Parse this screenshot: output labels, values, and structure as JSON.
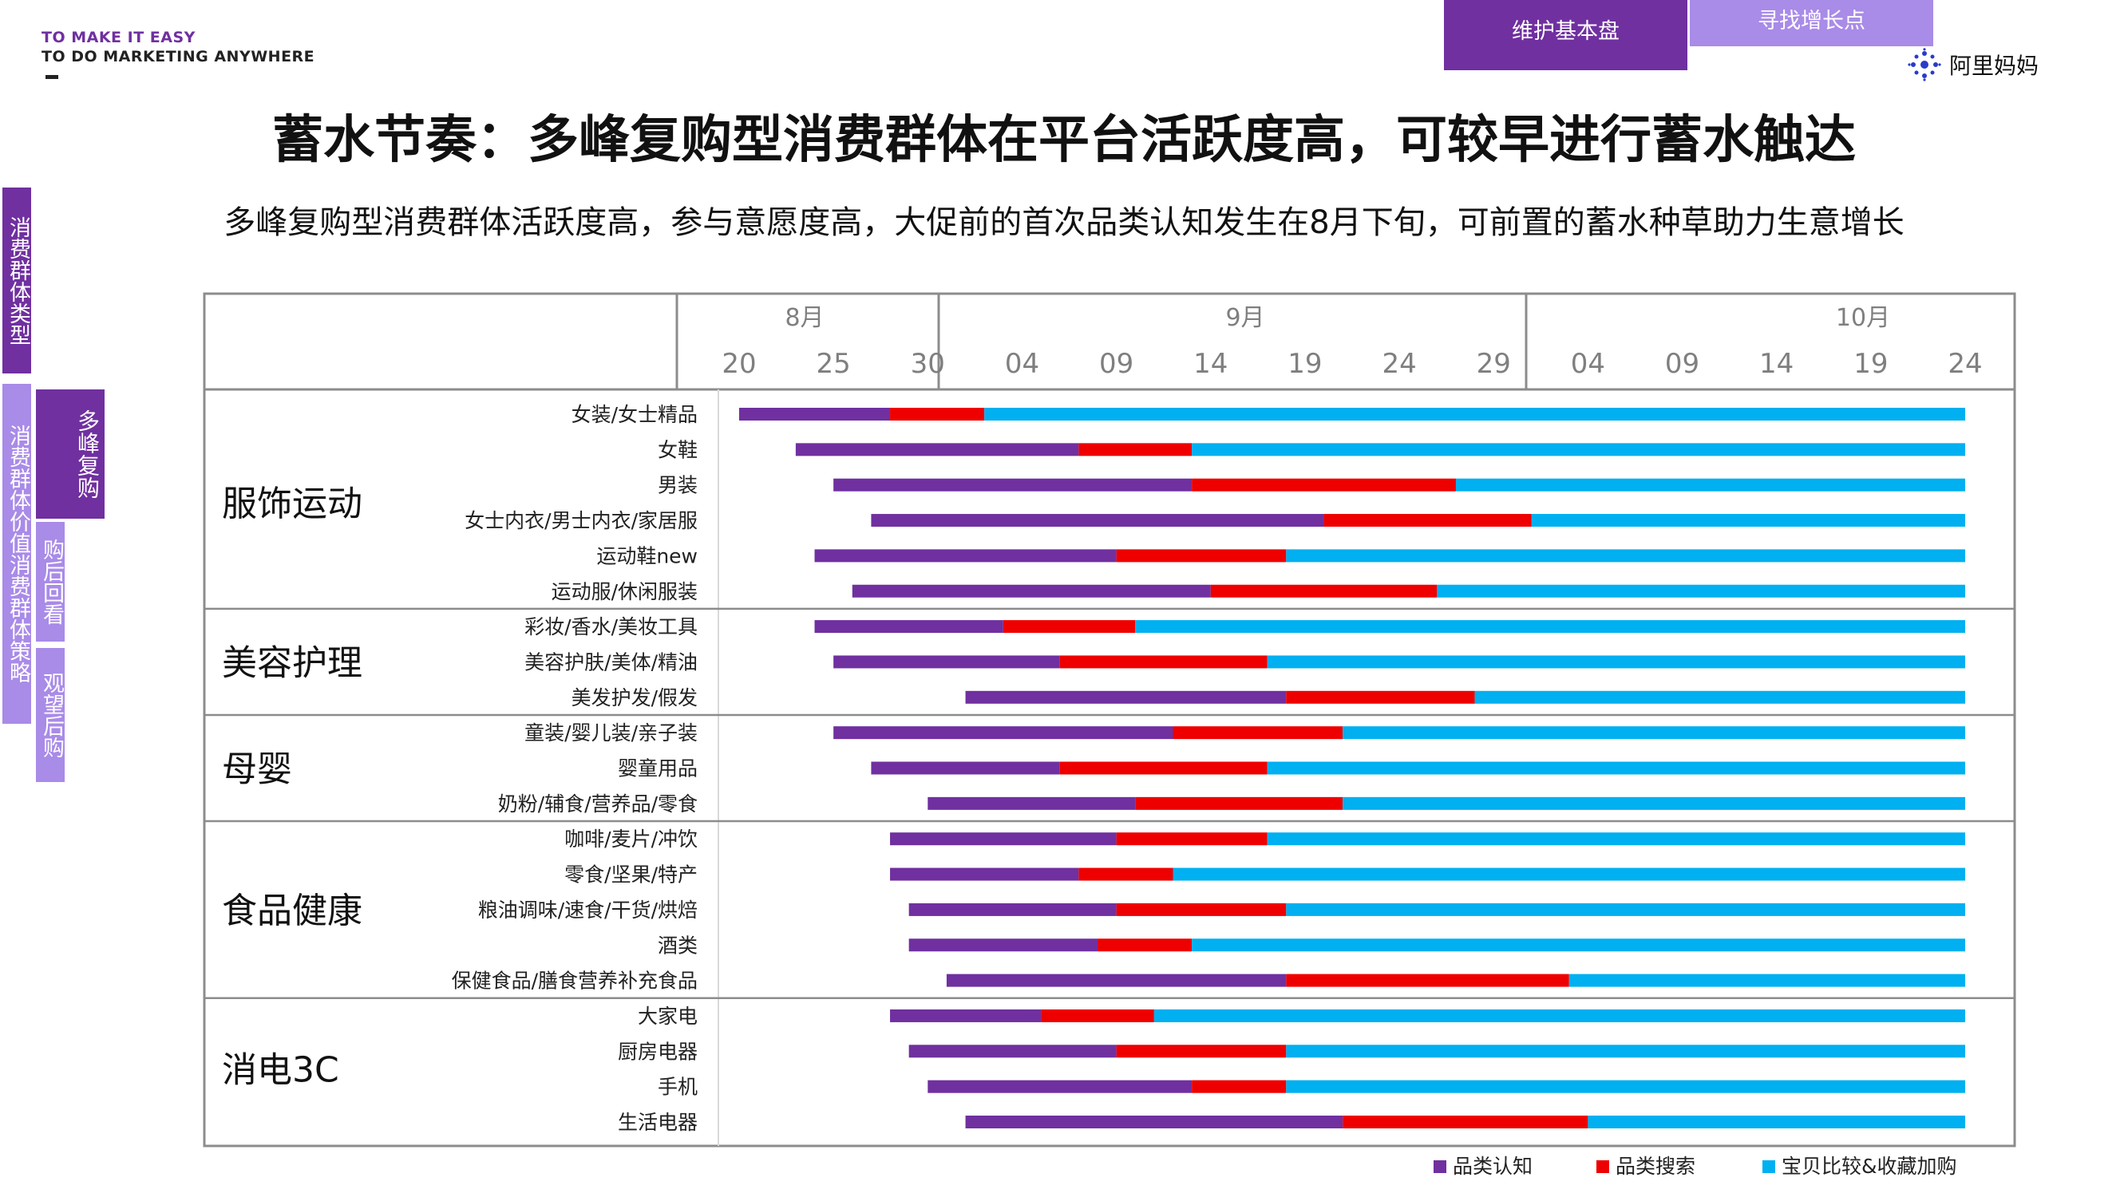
{
  "brand": {
    "line1": "TO MAKE IT EASY",
    "line2": "TO DO MARKETING ANYWHERE"
  },
  "tabs": [
    {
      "label": "维护基本盘",
      "active": true
    },
    {
      "label": "寻找增长点",
      "active": false
    }
  ],
  "logo": {
    "icon": "alimama-logo-icon",
    "text": "阿里妈妈"
  },
  "title": "蓄水节奏：多峰复购型消费群体在平台活跃度高，可较早进行蓄水触达",
  "subtitle": "多峰复购型消费群体活跃度高，参与意愿度高，大促前的首次品类认知发生在8月下旬，可前置的蓄水种草助力生意增长",
  "side_nav": {
    "consumer_type": "消费群体类型",
    "consumer_value": "消费群体价值",
    "consumer_strategy": "消费群体策略",
    "multi_peak": "多峰复购",
    "post_purchase": "购后回看",
    "wait_and_see": "观望后购"
  },
  "colors": {
    "purple": "#7030A0",
    "red": "#EE0000",
    "blue": "#00B0F0",
    "light_purple": "#A98BE8"
  },
  "chart_data": {
    "type": "bar",
    "orientation": "horizontal-stacked-timeline",
    "months": [
      {
        "label": "8月"
      },
      {
        "label": "9月"
      },
      {
        "label": "10月"
      }
    ],
    "tick_labels": [
      "20",
      "25",
      "30",
      "04",
      "09",
      "14",
      "19",
      "24",
      "29",
      "04",
      "09",
      "14",
      "19",
      "24"
    ],
    "tick_dates": [
      "08-20",
      "08-25",
      "08-30",
      "09-04",
      "09-09",
      "09-14",
      "09-19",
      "09-24",
      "09-29",
      "10-04",
      "10-09",
      "10-14",
      "10-19",
      "10-24"
    ],
    "legend": [
      {
        "name": "品类认知",
        "color": "#7030A0"
      },
      {
        "name": "品类搜索",
        "color": "#EE0000"
      },
      {
        "name": "宝贝比较&收藏加购",
        "color": "#00B0F0"
      }
    ],
    "legend_position": "bottom-right",
    "groups": [
      {
        "name": "服饰运动",
        "rows": [
          {
            "label": "女装/女士精品",
            "start": "08-20",
            "search": "08-28",
            "compare": "09-02",
            "end": "10-24"
          },
          {
            "label": "女鞋",
            "start": "08-23",
            "search": "09-07",
            "compare": "09-13",
            "end": "10-24"
          },
          {
            "label": "男装",
            "start": "08-25",
            "search": "09-13",
            "compare": "09-27",
            "end": "10-24"
          },
          {
            "label": "女士内衣/男士内衣/家居服",
            "start": "08-27",
            "search": "09-20",
            "compare": "10-01",
            "end": "10-24"
          },
          {
            "label": "运动鞋new",
            "start": "08-24",
            "search": "09-09",
            "compare": "09-18",
            "end": "10-24"
          },
          {
            "label": "运动服/休闲服装",
            "start": "08-26",
            "search": "09-14",
            "compare": "09-26",
            "end": "10-24"
          }
        ]
      },
      {
        "name": "美容护理",
        "rows": [
          {
            "label": "彩妆/香水/美妆工具",
            "start": "08-24",
            "search": "09-03",
            "compare": "09-10",
            "end": "10-24"
          },
          {
            "label": "美容护肤/美体/精油",
            "start": "08-25",
            "search": "09-06",
            "compare": "09-17",
            "end": "10-24"
          },
          {
            "label": "美发护发/假发",
            "start": "09-01",
            "search": "09-18",
            "compare": "09-28",
            "end": "10-24"
          }
        ]
      },
      {
        "name": "母婴",
        "rows": [
          {
            "label": "童装/婴儿装/亲子装",
            "start": "08-25",
            "search": "09-12",
            "compare": "09-21",
            "end": "10-24"
          },
          {
            "label": "婴童用品",
            "start": "08-27",
            "search": "09-06",
            "compare": "09-17",
            "end": "10-24"
          },
          {
            "label": "奶粉/辅食/营养品/零食",
            "start": "08-30",
            "search": "09-10",
            "compare": "09-21",
            "end": "10-24"
          }
        ]
      },
      {
        "name": "食品健康",
        "rows": [
          {
            "label": "咖啡/麦片/冲饮",
            "start": "08-28",
            "search": "09-09",
            "compare": "09-17",
            "end": "10-24"
          },
          {
            "label": "零食/坚果/特产",
            "start": "08-28",
            "search": "09-07",
            "compare": "09-12",
            "end": "10-24"
          },
          {
            "label": "粮油调味/速食/干货/烘焙",
            "start": "08-29",
            "search": "09-09",
            "compare": "09-18",
            "end": "10-24"
          },
          {
            "label": "酒类",
            "start": "08-29",
            "search": "09-08",
            "compare": "09-13",
            "end": "10-24"
          },
          {
            "label": "保健食品/膳食营养补充食品",
            "start": "08-31",
            "search": "09-18",
            "compare": "10-03",
            "end": "10-24"
          }
        ]
      },
      {
        "name": "消电3C",
        "rows": [
          {
            "label": "大家电",
            "start": "08-28",
            "search": "09-05",
            "compare": "09-11",
            "end": "10-24"
          },
          {
            "label": "厨房电器",
            "start": "08-29",
            "search": "09-09",
            "compare": "09-18",
            "end": "10-24"
          },
          {
            "label": "手机",
            "start": "08-30",
            "search": "09-13",
            "compare": "09-18",
            "end": "10-24"
          },
          {
            "label": "生活电器",
            "start": "09-01",
            "search": "09-21",
            "compare": "10-04",
            "end": "10-24"
          }
        ]
      }
    ]
  }
}
